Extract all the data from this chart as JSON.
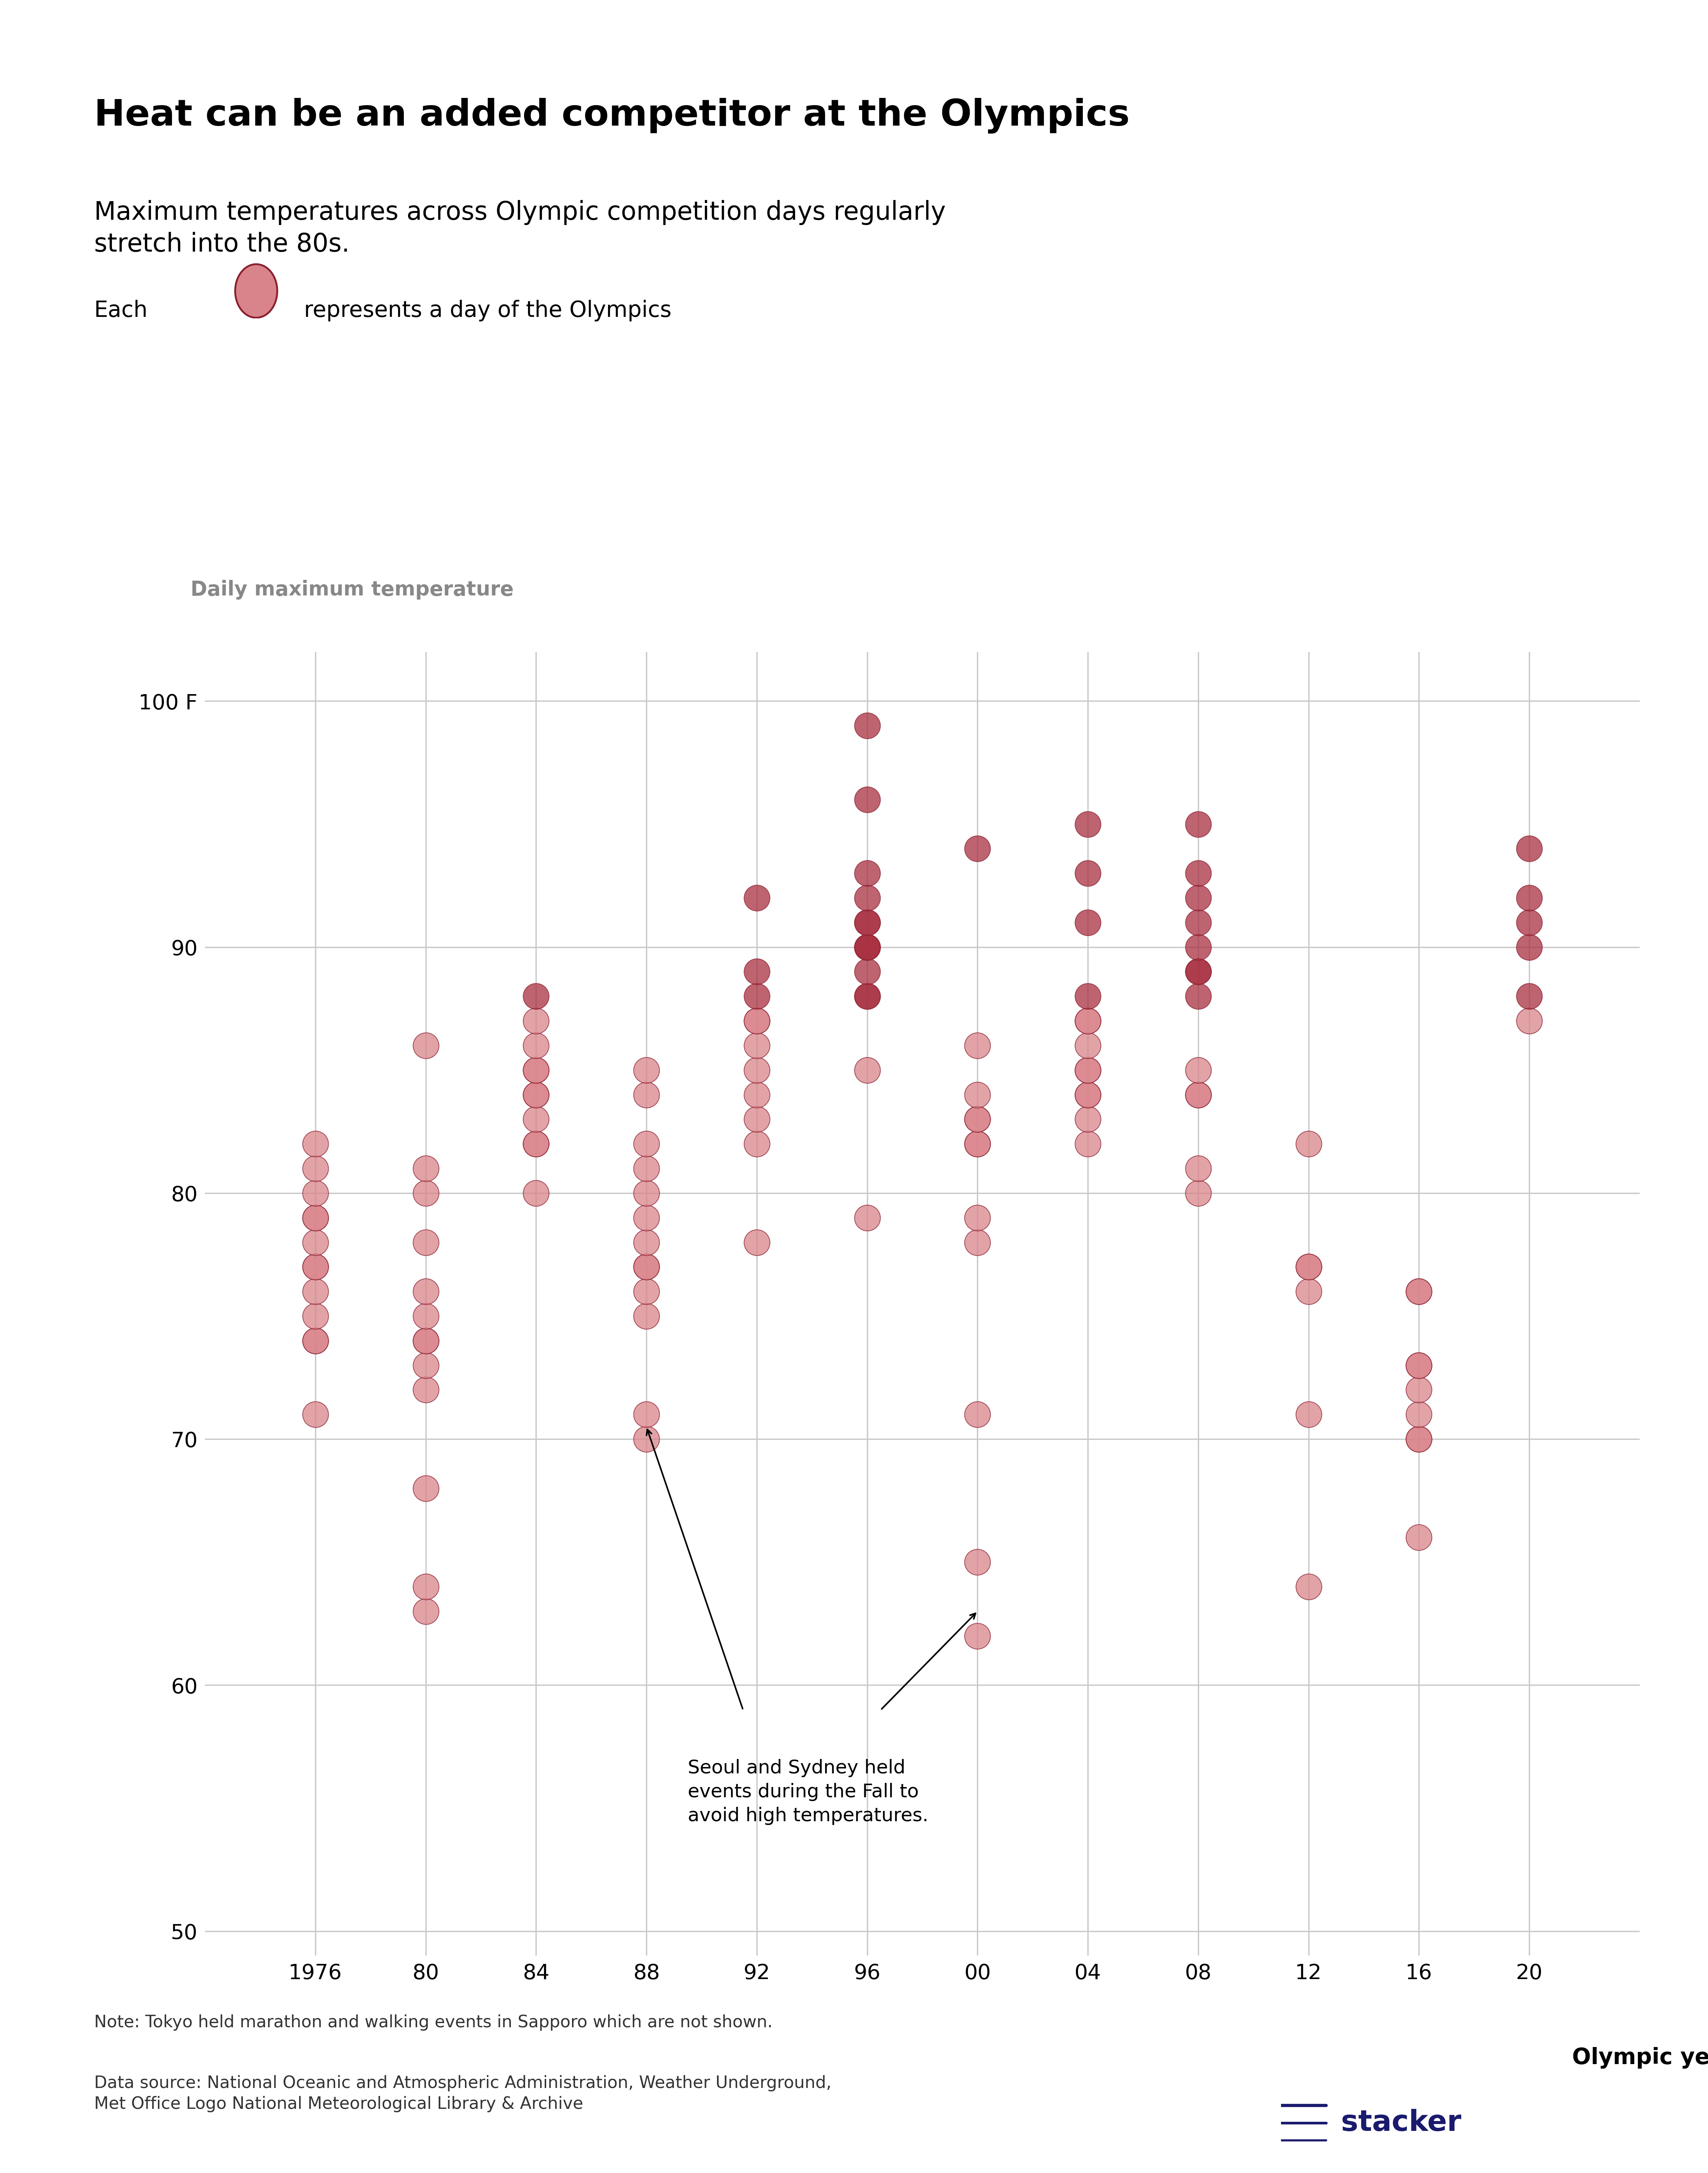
{
  "title": "Heat can be an added competitor at the Olympics",
  "subtitle": "Maximum temperatures across Olympic competition days regularly\nstretch into the 80s.",
  "legend_text_pre": "Each",
  "legend_text_post": "represents a day of the Olympics",
  "ylabel": "Daily maximum temperature",
  "ylabel_color": "#888888",
  "xlabel": "Olympic year",
  "note": "Note: Tokyo held marathon and walking events in Sapporo which are not shown.",
  "source": "Data source: National Oceanic and Atmospheric Administration, Weather Underground,\nMet Office Logo National Meteorological Library & Archive",
  "ylim": [
    49,
    102
  ],
  "yticks": [
    50,
    60,
    70,
    80,
    90,
    100
  ],
  "ytick_labels_custom": {
    "100": "100 F"
  },
  "background_color": "#ffffff",
  "dot_color_light": "#d9848a",
  "dot_color_dark": "#a83040",
  "dot_edge_color": "#8b2030",
  "grid_color": "#c8c8c8",
  "olympics": {
    "1976": [
      71,
      74,
      74,
      75,
      76,
      77,
      77,
      78,
      79,
      79,
      80,
      81,
      82
    ],
    "1980": [
      63,
      64,
      68,
      72,
      73,
      74,
      74,
      75,
      76,
      78,
      80,
      81,
      86
    ],
    "1984": [
      80,
      82,
      82,
      83,
      84,
      84,
      85,
      85,
      86,
      87,
      88
    ],
    "1988": [
      70,
      71,
      75,
      76,
      77,
      77,
      78,
      79,
      80,
      81,
      82,
      84,
      85
    ],
    "1992": [
      78,
      82,
      83,
      84,
      85,
      86,
      87,
      87,
      88,
      89,
      92
    ],
    "1996": [
      79,
      85,
      88,
      88,
      89,
      90,
      90,
      90,
      91,
      91,
      92,
      93,
      96,
      99
    ],
    "2000": [
      62,
      65,
      71,
      78,
      79,
      82,
      82,
      83,
      83,
      84,
      86,
      94
    ],
    "2004": [
      82,
      83,
      84,
      84,
      85,
      85,
      86,
      87,
      87,
      88,
      91,
      93,
      95
    ],
    "2008": [
      80,
      81,
      84,
      84,
      85,
      88,
      89,
      89,
      90,
      91,
      92,
      93,
      95
    ],
    "2012": [
      64,
      71,
      76,
      77,
      77,
      82
    ],
    "2016": [
      66,
      70,
      70,
      71,
      72,
      73,
      73,
      76,
      76
    ],
    "2020": [
      87,
      88,
      90,
      91,
      92,
      94
    ]
  },
  "x_positions": [
    1976,
    1980,
    1984,
    1988,
    1992,
    1996,
    2000,
    2004,
    2008,
    2012,
    2016,
    2020
  ],
  "x_labels": [
    "1976",
    "80",
    "84",
    "88",
    "92",
    "96",
    "00",
    "04",
    "08",
    "12",
    "16",
    "20"
  ],
  "annotation_text": "Seoul and Sydney held\nevents during the Fall to\navoid high temperatures.",
  "heat_threshold": 88,
  "dot_size": 2400,
  "dot_alpha": 0.75,
  "dot_edge_width": 1.5
}
